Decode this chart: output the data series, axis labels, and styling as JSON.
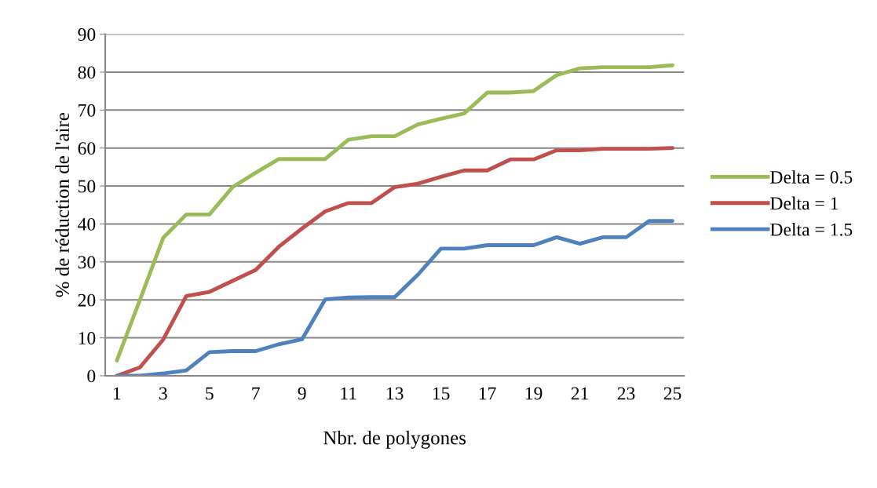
{
  "chart_data": {
    "type": "line",
    "xlabel": "Nbr. de polygones",
    "ylabel": "% de réduction de l'aire",
    "categories": [
      "1",
      null,
      "3",
      null,
      "5",
      null,
      "7",
      null,
      "9",
      null,
      "11",
      null,
      "13",
      null,
      "15",
      null,
      "17",
      null,
      "19",
      null,
      "21",
      null,
      "23",
      null,
      "25"
    ],
    "series": [
      {
        "name": "Delta = 0.5",
        "color": "#9bbb59",
        "values": [
          4,
          20,
          36.3,
          42.5,
          42.5,
          49.7,
          53.5,
          57.1,
          57.1,
          57.1,
          62.2,
          63.1,
          63.1,
          66.2,
          67.7,
          69.1,
          74.6,
          74.6,
          75,
          79.2,
          81,
          81.3,
          81.3,
          81.3,
          81.8
        ]
      },
      {
        "name": "Delta = 1",
        "color": "#c0504d",
        "values": [
          0,
          2.2,
          9.5,
          21,
          22.1,
          25,
          27.9,
          34,
          38.8,
          43.3,
          45.5,
          45.5,
          49.7,
          50.6,
          52.4,
          54.1,
          54.1,
          57,
          57,
          59.4,
          59.4,
          59.8,
          59.8,
          59.8,
          60
        ]
      },
      {
        "name": "Delta = 1.5",
        "color": "#4f81bd",
        "values": [
          0,
          0,
          0.6,
          1.4,
          6.2,
          6.5,
          6.5,
          8.3,
          9.6,
          20.1,
          20.6,
          20.7,
          20.7,
          26.6,
          33.5,
          33.5,
          34.4,
          34.4,
          34.4,
          36.5,
          34.8,
          36.5,
          36.5,
          40.8,
          40.8
        ]
      }
    ],
    "ylim": [
      0,
      90
    ],
    "yticks": [
      0,
      10,
      20,
      30,
      40,
      50,
      60,
      70,
      80,
      90
    ],
    "grid": "y",
    "legend": "right",
    "marker": "none",
    "line_style": "solid"
  }
}
